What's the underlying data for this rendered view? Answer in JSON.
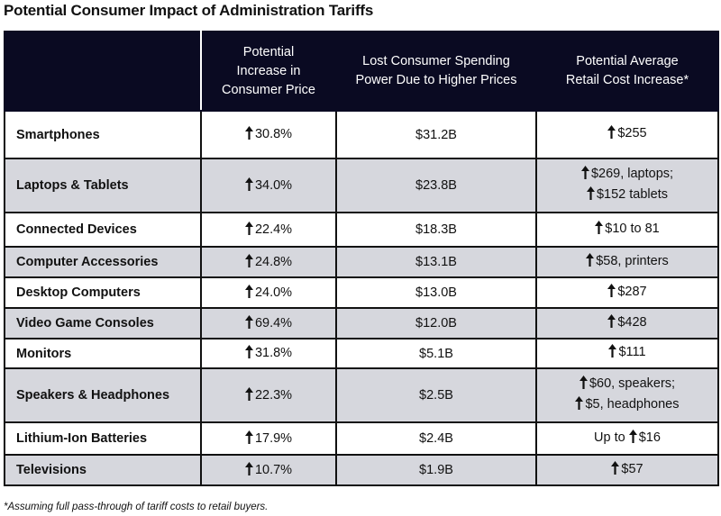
{
  "title": "Potential Consumer Impact of Administration Tariffs",
  "headers": [
    "",
    "Potential Increase in Consumer Price",
    "Lost Consumer Spending Power Due to Higher Prices",
    "Potential Average Retail Cost Increase*"
  ],
  "header_lines": [
    [],
    [
      "Potential",
      "Increase in",
      "Consumer Price"
    ],
    [
      "Lost Consumer Spending",
      "Power Due to Higher Prices"
    ],
    [
      "Potential Average",
      "Retail Cost Increase*"
    ]
  ],
  "rows": [
    {
      "category": "Smartphones",
      "price_increase": "30.8%",
      "lost_spending": "$31.2B",
      "retail": [
        {
          "prefix": "",
          "value": "$255"
        }
      ]
    },
    {
      "category": "Laptops & Tablets",
      "price_increase": "34.0%",
      "lost_spending": "$23.8B",
      "retail": [
        {
          "prefix": "",
          "value": "$269, laptops;"
        },
        {
          "prefix": "",
          "value": "$152 tablets"
        }
      ]
    },
    {
      "category": "Connected Devices",
      "price_increase": "22.4%",
      "lost_spending": "$18.3B",
      "retail": [
        {
          "prefix": "",
          "value": "$10 to 81"
        }
      ]
    },
    {
      "category": "Computer Accessories",
      "price_increase": "24.8%",
      "lost_spending": "$13.1B",
      "retail": [
        {
          "prefix": "",
          "value": "$58, printers"
        }
      ]
    },
    {
      "category": "Desktop Computers",
      "price_increase": "24.0%",
      "lost_spending": "$13.0B",
      "retail": [
        {
          "prefix": "",
          "value": "$287"
        }
      ]
    },
    {
      "category": "Video Game Consoles",
      "price_increase": "69.4%",
      "lost_spending": "$12.0B",
      "retail": [
        {
          "prefix": "",
          "value": "$428"
        }
      ]
    },
    {
      "category": "Monitors",
      "price_increase": "31.8%",
      "lost_spending": "$5.1B",
      "retail": [
        {
          "prefix": "",
          "value": "$111"
        }
      ]
    },
    {
      "category": "Speakers & Headphones",
      "price_increase": "22.3%",
      "lost_spending": "$2.5B",
      "retail": [
        {
          "prefix": "",
          "value": "$60, speakers;"
        },
        {
          "prefix": "",
          "value": "$5, headphones"
        }
      ]
    },
    {
      "category": "Lithium-Ion Batteries",
      "price_increase": "17.9%",
      "lost_spending": "$2.4B",
      "retail": [
        {
          "prefix": "Up to ",
          "value": "$16"
        }
      ]
    },
    {
      "category": "Televisions",
      "price_increase": "10.7%",
      "lost_spending": "$1.9B",
      "retail": [
        {
          "prefix": "",
          "value": "$57"
        }
      ]
    }
  ],
  "footnote": "*Assuming full pass-through of tariff costs to retail buyers.",
  "colors": {
    "header_bg": "#0a0a22",
    "alt_row": "#d6d7dd",
    "border": "#111111"
  }
}
